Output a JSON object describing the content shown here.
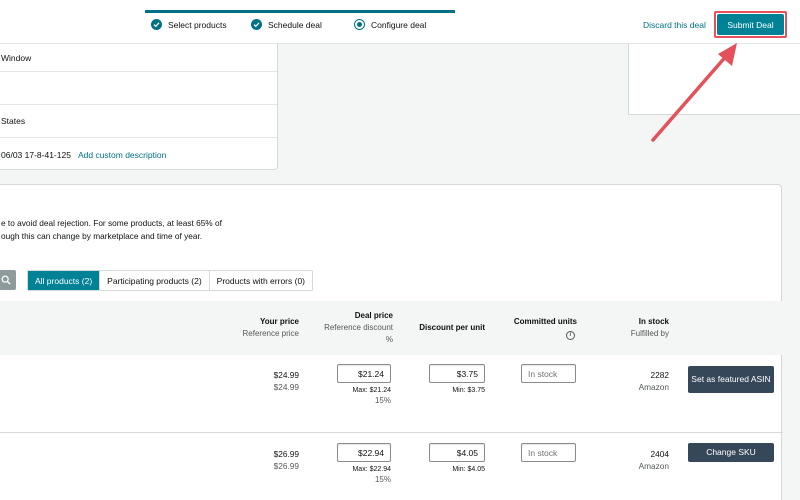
{
  "header": {
    "steps": [
      {
        "label": "Select products",
        "state": "complete"
      },
      {
        "label": "Schedule deal",
        "state": "complete"
      },
      {
        "label": "Configure deal",
        "state": "current"
      }
    ],
    "discard_label": "Discard this deal",
    "submit_label": "Submit Deal"
  },
  "info": {
    "rows": [
      "Window",
      "",
      "States",
      "06/03 17-8-41-125"
    ],
    "add_custom_description": "Add custom description"
  },
  "products": {
    "note_line1": "e to avoid deal rejection. For some products, at least 65% of",
    "note_line2": "ough this can change by marketplace and time of year.",
    "tabs": [
      "All products (2)",
      "Participating products (2)",
      "Products with errors (0)"
    ],
    "columns": {
      "your_price": "Your price",
      "reference_price": "Reference price",
      "deal_price": "Deal price",
      "reference_discount": "Reference discount",
      "percent": "%",
      "discount_per_unit": "Discount per unit",
      "committed_units": "Committed units",
      "in_stock": "In stock",
      "fulfilled_by": "Fulfilled by"
    },
    "rows": [
      {
        "your_price": "$24.99",
        "reference_price": "$24.99",
        "deal_price": "$21.24",
        "max": "Max: $21.24",
        "ref_discount": "15%",
        "discount": "$3.75",
        "min": "Min: $3.75",
        "committed_placeholder": "In stock",
        "stock": "2282",
        "fulfilled": "Amazon",
        "action": "Set as featured ASIN"
      },
      {
        "your_price": "$26.99",
        "reference_price": "$26.99",
        "deal_price": "$22.94",
        "max": "Max: $22.94",
        "ref_discount": "15%",
        "discount": "$4.05",
        "min": "Min: $4.05",
        "committed_placeholder": "In stock",
        "stock": "2404",
        "fulfilled": "Amazon",
        "action": "Change SKU"
      }
    ]
  },
  "colors": {
    "accent": "#008296",
    "highlight": "#e4515a",
    "dark_button": "#37475a"
  }
}
